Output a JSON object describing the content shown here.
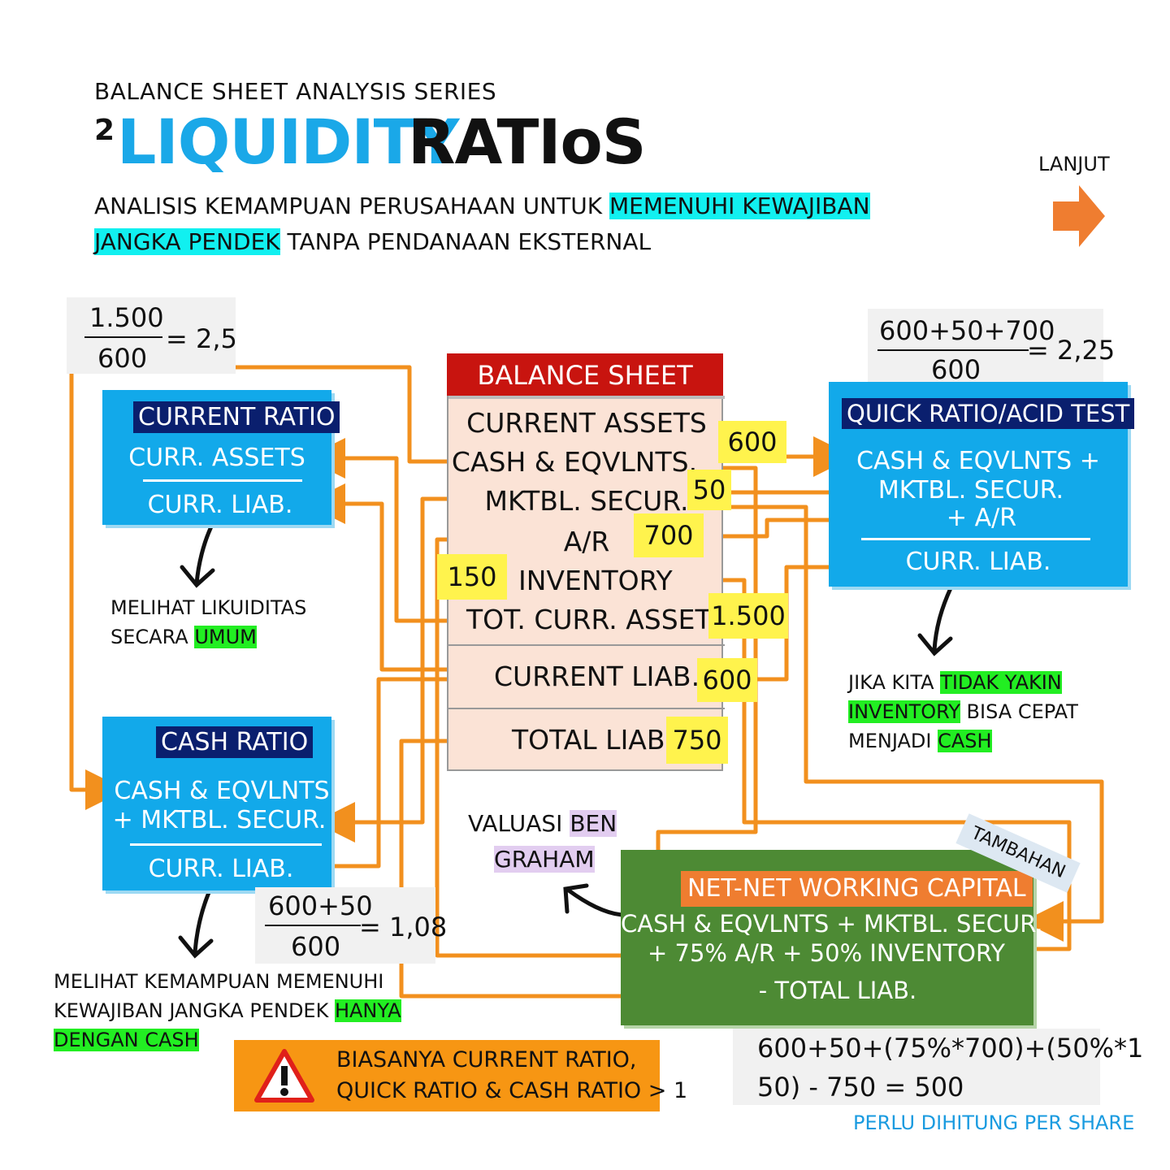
{
  "header": {
    "series": "BALANCE SHEET ANALYSIS SERIES",
    "number": "2",
    "title_part1": "LIQUIDITY",
    "title_part2": "RATIoS",
    "desc_line1_plain": "ANALISIS KEMAMPUAN PERUSAHAAN UNTUK ",
    "desc_line1_hl": "MEMENUHI KEWAJIBAN",
    "desc_line2_hl": "JANGKA PENDEK",
    "desc_line2_plain": " TANPA PENDANAAN EKSTERNAL",
    "next_label": "LANJUT"
  },
  "current_ratio": {
    "formula_num": "1.500",
    "formula_den": "600",
    "formula_result": "= 2,5",
    "title": "CURRENT RATIO",
    "numerator": "CURR. ASSETS",
    "denominator": "CURR. LIAB.",
    "note_line1": "MELIHAT LIKUIDITAS",
    "note_line2_plain": "SECARA ",
    "note_line2_hl": "UMUM"
  },
  "quick_ratio": {
    "formula_num": "600+50+700",
    "formula_den": "600",
    "formula_result": "= 2,25",
    "title": "QUICK RATIO/ACID TEST",
    "num_line1": "CASH & EQVLNTS +",
    "num_line2": "MKTBL. SECUR.",
    "num_line3": "+ A/R",
    "denominator": "CURR. LIAB.",
    "note_line1_plain": "JIKA KITA ",
    "note_line1_hl": "TIDAK YAKIN",
    "note_line2_hl": "INVENTORY",
    "note_line2_plain": " BISA CEPAT",
    "note_line3_plain": "MENJADI ",
    "note_line3_hl": "CASH"
  },
  "cash_ratio": {
    "title": "CASH RATIO",
    "num_line1": "CASH & EQVLNTS",
    "num_line2": "+ MKTBL. SECUR.",
    "denominator": "CURR. LIAB.",
    "formula_num": "600+50",
    "formula_den": "600",
    "formula_result": "= 1,08",
    "note_line1": "MELIHAT KEMAMPUAN MEMENUHI",
    "note_line2_plain": "KEWAJIBAN JANGKA PENDEK ",
    "note_line2_hl": "HANYA",
    "note_line3_hl": "DENGAN CASH"
  },
  "balance_sheet": {
    "title": "BALANCE SHEET",
    "current_assets": "CURRENT ASSETS",
    "cash": "CASH & EQVLNTS.",
    "cash_value": "600",
    "securities": "MKTBL. SECUR.",
    "securities_value": "50",
    "ar": "A/R",
    "ar_value": "700",
    "inventory": "INVENTORY",
    "inventory_value": "150",
    "total_current_assets": "TOT. CURR. ASSETS",
    "total_current_assets_value": "1.500",
    "current_liab": "CURRENT LIAB.",
    "current_liab_value": "600",
    "total_liab": "TOTAL LIAB.",
    "total_liab_value": "750"
  },
  "graham": {
    "label_plain": "VALUASI ",
    "label_hl1": "BEN",
    "label_hl2": "GRAHAM"
  },
  "nnwc": {
    "tag": "TAMBAHAN",
    "title": "NET-NET WORKING CAPITAL",
    "line1": "CASH & EQVLNTS + MKTBL. SECUR.",
    "line2": "+ 75% A/R + 50% INVENTORY",
    "line3": "- TOTAL LIAB.",
    "calc_line1": "600+50+(75%*700)+(50%*1",
    "calc_line2": "50) - 750 = 500",
    "footnote": "PERLU DIHITUNG PER SHARE"
  },
  "warning": {
    "line1": "BIASANYA CURRENT RATIO,",
    "line2": "QUICK RATIO & CASH RATIO > 1"
  },
  "colors": {
    "accent_blue": "#12a9ea",
    "arrow_orange": "#f2901e",
    "header_red": "#c8140f",
    "nnwc_green": "#4d8a34",
    "highlight_cyan": "#11f0f0",
    "highlight_green": "#22ee22",
    "highlight_yellow": "#fff34d"
  }
}
